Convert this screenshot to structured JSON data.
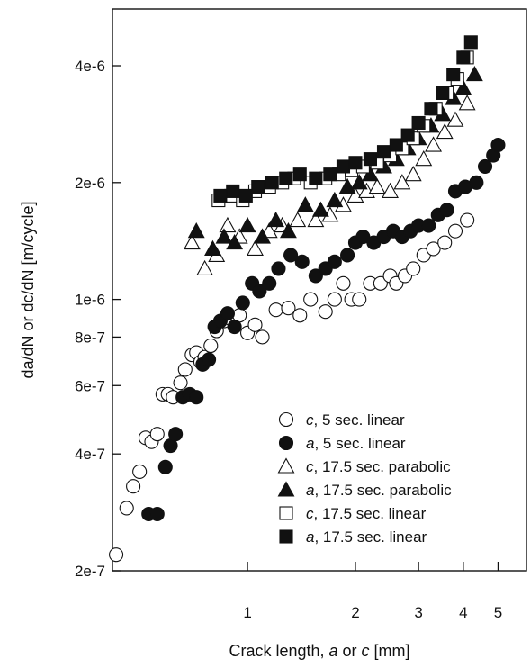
{
  "chart_data": {
    "type": "scatter",
    "title": "",
    "xlabel": {
      "prefix": "Crack length, ",
      "var1": "a",
      "mid": " or ",
      "var2": "c",
      "suffix": " [mm]"
    },
    "ylabel": "da/dN or dc/dN [m/cycle]",
    "x_scale": "log",
    "y_scale": "log",
    "xlim": [
      0.42,
      6.0
    ],
    "ylim": [
      2e-07,
      5.6e-06
    ],
    "x_ticks": [
      {
        "value": 1,
        "label": "1"
      },
      {
        "value": 2,
        "label": "2"
      },
      {
        "value": 3,
        "label": "3"
      },
      {
        "value": 4,
        "label": "4"
      },
      {
        "value": 5,
        "label": "5"
      }
    ],
    "y_ticks": [
      {
        "value": 2e-07,
        "label": "2e-7"
      },
      {
        "value": 4e-07,
        "label": "4e-7"
      },
      {
        "value": 6e-07,
        "label": "6e-7"
      },
      {
        "value": 8e-07,
        "label": "8e-7"
      },
      {
        "value": 1e-06,
        "label": "1e-6"
      },
      {
        "value": 2e-06,
        "label": "2e-6"
      },
      {
        "value": 4e-06,
        "label": "4e-6"
      }
    ],
    "grid": false,
    "legend_position": "bottom-right",
    "series": [
      {
        "var": "c",
        "name": ", 5 sec. linear",
        "marker": "circle",
        "filled": false,
        "points": [
          [
            0.43,
            2.2e-07
          ],
          [
            0.46,
            2.9e-07
          ],
          [
            0.48,
            3.3e-07
          ],
          [
            0.5,
            3.6e-07
          ],
          [
            0.52,
            4.4e-07
          ],
          [
            0.54,
            4.3e-07
          ],
          [
            0.56,
            4.5e-07
          ],
          [
            0.58,
            5.7e-07
          ],
          [
            0.6,
            5.7e-07
          ],
          [
            0.62,
            5.6e-07
          ],
          [
            0.65,
            6.1e-07
          ],
          [
            0.67,
            6.6e-07
          ],
          [
            0.7,
            7.2e-07
          ],
          [
            0.72,
            7.3e-07
          ],
          [
            0.74,
            6.9e-07
          ],
          [
            0.76,
            7.1e-07
          ],
          [
            0.79,
            7.6e-07
          ],
          [
            0.82,
            8.3e-07
          ],
          [
            0.86,
            8.8e-07
          ],
          [
            0.9,
            8.9e-07
          ],
          [
            0.95,
            9.1e-07
          ],
          [
            1.0,
            8.2e-07
          ],
          [
            1.05,
            8.6e-07
          ],
          [
            1.1,
            8e-07
          ],
          [
            1.2,
            9.4e-07
          ],
          [
            1.3,
            9.5e-07
          ],
          [
            1.4,
            9.1e-07
          ],
          [
            1.5,
            1e-06
          ],
          [
            1.65,
            9.3e-07
          ],
          [
            1.75,
            1e-06
          ],
          [
            1.85,
            1.1e-06
          ],
          [
            1.95,
            1e-06
          ],
          [
            2.05,
            1e-06
          ],
          [
            2.2,
            1.1e-06
          ],
          [
            2.35,
            1.1e-06
          ],
          [
            2.5,
            1.15e-06
          ],
          [
            2.6,
            1.1e-06
          ],
          [
            2.75,
            1.15e-06
          ],
          [
            2.9,
            1.2e-06
          ],
          [
            3.1,
            1.3e-06
          ],
          [
            3.3,
            1.35e-06
          ],
          [
            3.55,
            1.4e-06
          ],
          [
            3.8,
            1.5e-06
          ],
          [
            4.1,
            1.6e-06
          ]
        ]
      },
      {
        "var": "a",
        "name": ", 5 sec. linear",
        "marker": "circle",
        "filled": true,
        "points": [
          [
            0.53,
            2.8e-07
          ],
          [
            0.56,
            2.8e-07
          ],
          [
            0.59,
            3.7e-07
          ],
          [
            0.61,
            4.2e-07
          ],
          [
            0.63,
            4.5e-07
          ],
          [
            0.66,
            5.6e-07
          ],
          [
            0.69,
            5.7e-07
          ],
          [
            0.72,
            5.6e-07
          ],
          [
            0.75,
            6.8e-07
          ],
          [
            0.78,
            7e-07
          ],
          [
            0.81,
            8.5e-07
          ],
          [
            0.84,
            8.8e-07
          ],
          [
            0.88,
            9.2e-07
          ],
          [
            0.92,
            8.5e-07
          ],
          [
            0.97,
            9.8e-07
          ],
          [
            1.03,
            1.1e-06
          ],
          [
            1.08,
            1.05e-06
          ],
          [
            1.15,
            1.1e-06
          ],
          [
            1.22,
            1.2e-06
          ],
          [
            1.32,
            1.3e-06
          ],
          [
            1.42,
            1.25e-06
          ],
          [
            1.55,
            1.15e-06
          ],
          [
            1.65,
            1.2e-06
          ],
          [
            1.75,
            1.25e-06
          ],
          [
            1.9,
            1.3e-06
          ],
          [
            2.0,
            1.4e-06
          ],
          [
            2.1,
            1.45e-06
          ],
          [
            2.25,
            1.4e-06
          ],
          [
            2.4,
            1.45e-06
          ],
          [
            2.55,
            1.5e-06
          ],
          [
            2.7,
            1.45e-06
          ],
          [
            2.85,
            1.5e-06
          ],
          [
            3.0,
            1.55e-06
          ],
          [
            3.2,
            1.55e-06
          ],
          [
            3.4,
            1.65e-06
          ],
          [
            3.6,
            1.7e-06
          ],
          [
            3.8,
            1.9e-06
          ],
          [
            4.05,
            1.95e-06
          ],
          [
            4.35,
            2e-06
          ],
          [
            4.6,
            2.2e-06
          ],
          [
            4.85,
            2.35e-06
          ],
          [
            5.0,
            2.5e-06
          ]
        ]
      },
      {
        "var": "c",
        "name": ", 17.5 sec. parabolic",
        "marker": "triangle",
        "filled": false,
        "points": [
          [
            0.7,
            1.4e-06
          ],
          [
            0.76,
            1.2e-06
          ],
          [
            0.82,
            1.3e-06
          ],
          [
            0.88,
            1.55e-06
          ],
          [
            0.95,
            1.45e-06
          ],
          [
            1.05,
            1.35e-06
          ],
          [
            1.15,
            1.5e-06
          ],
          [
            1.25,
            1.55e-06
          ],
          [
            1.38,
            1.6e-06
          ],
          [
            1.55,
            1.6e-06
          ],
          [
            1.7,
            1.65e-06
          ],
          [
            1.85,
            1.75e-06
          ],
          [
            2.0,
            1.85e-06
          ],
          [
            2.15,
            1.9e-06
          ],
          [
            2.3,
            1.95e-06
          ],
          [
            2.5,
            1.9e-06
          ],
          [
            2.7,
            2e-06
          ],
          [
            2.9,
            2.1e-06
          ],
          [
            3.1,
            2.3e-06
          ],
          [
            3.3,
            2.5e-06
          ],
          [
            3.55,
            2.7e-06
          ],
          [
            3.8,
            2.9e-06
          ],
          [
            4.1,
            3.2e-06
          ]
        ]
      },
      {
        "var": "a",
        "name": ", 17.5 sec. parabolic",
        "marker": "triangle",
        "filled": true,
        "points": [
          [
            0.72,
            1.5e-06
          ],
          [
            0.8,
            1.35e-06
          ],
          [
            0.86,
            1.45e-06
          ],
          [
            0.92,
            1.4e-06
          ],
          [
            1.0,
            1.55e-06
          ],
          [
            1.1,
            1.45e-06
          ],
          [
            1.2,
            1.6e-06
          ],
          [
            1.3,
            1.5e-06
          ],
          [
            1.45,
            1.75e-06
          ],
          [
            1.6,
            1.7e-06
          ],
          [
            1.75,
            1.8e-06
          ],
          [
            1.9,
            1.95e-06
          ],
          [
            2.05,
            2e-06
          ],
          [
            2.2,
            2.1e-06
          ],
          [
            2.4,
            2.2e-06
          ],
          [
            2.6,
            2.3e-06
          ],
          [
            2.8,
            2.45e-06
          ],
          [
            3.0,
            2.6e-06
          ],
          [
            3.25,
            2.8e-06
          ],
          [
            3.5,
            3e-06
          ],
          [
            3.75,
            3.3e-06
          ],
          [
            4.0,
            3.5e-06
          ],
          [
            4.3,
            3.8e-06
          ]
        ]
      },
      {
        "var": "c",
        "name": ", 17.5 sec. linear",
        "marker": "square",
        "filled": false,
        "points": [
          [
            0.83,
            1.8e-06
          ],
          [
            0.9,
            1.85e-06
          ],
          [
            0.97,
            1.8e-06
          ],
          [
            1.05,
            1.9e-06
          ],
          [
            1.15,
            1.95e-06
          ],
          [
            1.25,
            2e-06
          ],
          [
            1.35,
            2.05e-06
          ],
          [
            1.5,
            2e-06
          ],
          [
            1.65,
            2.05e-06
          ],
          [
            1.8,
            2.1e-06
          ],
          [
            1.95,
            2.15e-06
          ],
          [
            2.1,
            2.2e-06
          ],
          [
            2.3,
            2.25e-06
          ],
          [
            2.5,
            2.35e-06
          ],
          [
            2.7,
            2.45e-06
          ],
          [
            2.9,
            2.6e-06
          ],
          [
            3.1,
            2.8e-06
          ],
          [
            3.35,
            3.1e-06
          ],
          [
            3.6,
            3.4e-06
          ],
          [
            3.85,
            3.7e-06
          ],
          [
            4.1,
            4.2e-06
          ]
        ]
      },
      {
        "var": "a",
        "name": ", 17.5 sec. linear",
        "marker": "square",
        "filled": true,
        "points": [
          [
            0.84,
            1.85e-06
          ],
          [
            0.91,
            1.9e-06
          ],
          [
            0.99,
            1.85e-06
          ],
          [
            1.07,
            1.95e-06
          ],
          [
            1.17,
            2e-06
          ],
          [
            1.28,
            2.05e-06
          ],
          [
            1.4,
            2.1e-06
          ],
          [
            1.55,
            2.05e-06
          ],
          [
            1.7,
            2.1e-06
          ],
          [
            1.85,
            2.2e-06
          ],
          [
            2.0,
            2.25e-06
          ],
          [
            2.2,
            2.3e-06
          ],
          [
            2.4,
            2.4e-06
          ],
          [
            2.6,
            2.5e-06
          ],
          [
            2.8,
            2.65e-06
          ],
          [
            3.0,
            2.85e-06
          ],
          [
            3.25,
            3.1e-06
          ],
          [
            3.5,
            3.4e-06
          ],
          [
            3.75,
            3.8e-06
          ],
          [
            4.0,
            4.2e-06
          ],
          [
            4.2,
            4.6e-06
          ]
        ]
      }
    ]
  }
}
